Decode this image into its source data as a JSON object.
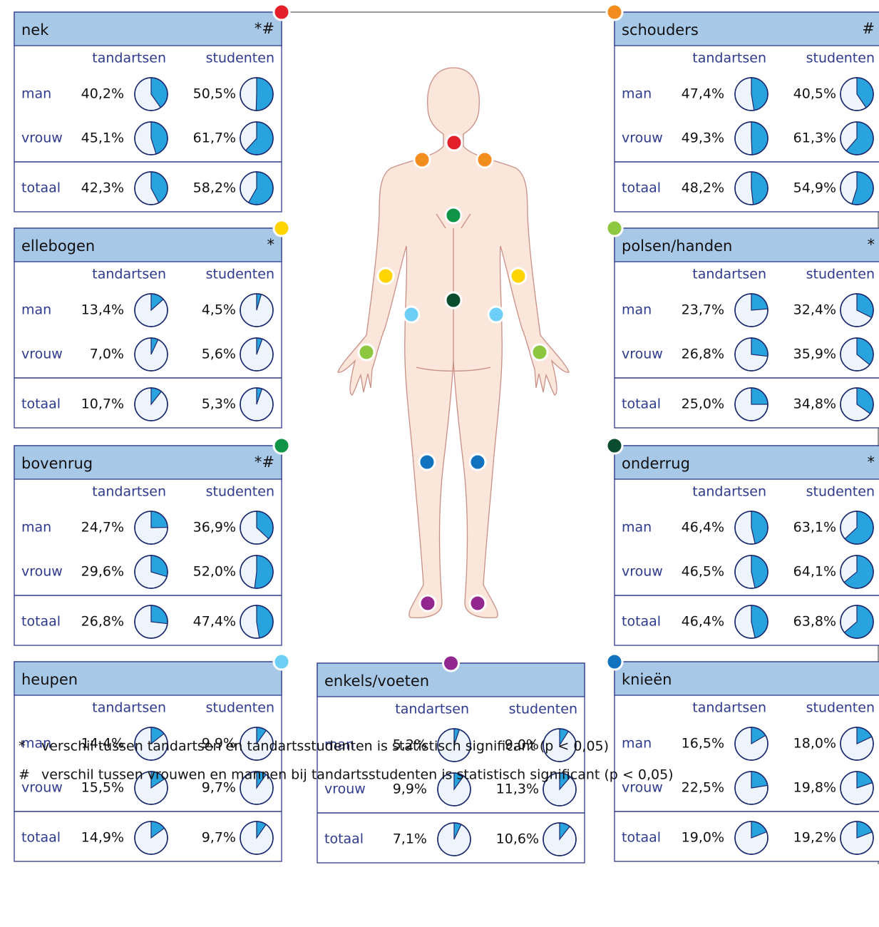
{
  "columns": [
    "tandartsen",
    "studenten"
  ],
  "rows": [
    "man",
    "vrouw",
    "totaal"
  ],
  "panels": [
    {
      "title": "nek",
      "significance": "*#",
      "color": "#e3202a",
      "values": [
        [
          40.2,
          50.5
        ],
        [
          45.1,
          61.7
        ],
        [
          42.3,
          58.2
        ]
      ],
      "value_labels": [
        [
          "40,2%",
          "50,5%"
        ],
        [
          "45,1%",
          "61,7%"
        ],
        [
          "42,3%",
          "58,2%"
        ]
      ]
    },
    {
      "title": "schouders",
      "significance": "#",
      "color": "#f28c1e",
      "values": [
        [
          47.4,
          40.5
        ],
        [
          49.3,
          61.3
        ],
        [
          48.2,
          54.9
        ]
      ],
      "value_labels": [
        [
          "47,4%",
          "40,5%"
        ],
        [
          "49,3%",
          "61,3%"
        ],
        [
          "48,2%",
          "54,9%"
        ]
      ]
    },
    {
      "title": "ellebogen",
      "significance": "*",
      "color": "#ffd400",
      "values": [
        [
          13.4,
          4.5
        ],
        [
          7.0,
          5.6
        ],
        [
          10.7,
          5.3
        ]
      ],
      "value_labels": [
        [
          "13,4%",
          "4,5%"
        ],
        [
          "7,0%",
          "5,6%"
        ],
        [
          "10,7%",
          "5,3%"
        ]
      ]
    },
    {
      "title": "polsen/handen",
      "significance": "*",
      "color": "#8dc63f",
      "values": [
        [
          23.7,
          32.4
        ],
        [
          26.8,
          35.9
        ],
        [
          25.0,
          34.8
        ]
      ],
      "value_labels": [
        [
          "23,7%",
          "32,4%"
        ],
        [
          "26,8%",
          "35,9%"
        ],
        [
          "25,0%",
          "34,8%"
        ]
      ]
    },
    {
      "title": "bovenrug",
      "significance": "*#",
      "color": "#0f9447",
      "values": [
        [
          24.7,
          36.9
        ],
        [
          29.6,
          52.0
        ],
        [
          26.8,
          47.4
        ]
      ],
      "value_labels": [
        [
          "24,7%",
          "36,9%"
        ],
        [
          "29,6%",
          "52,0%"
        ],
        [
          "26,8%",
          "47,4%"
        ]
      ]
    },
    {
      "title": "onderrug",
      "significance": "*",
      "color": "#0a4d2e",
      "values": [
        [
          46.4,
          63.1
        ],
        [
          46.5,
          64.1
        ],
        [
          46.4,
          63.8
        ]
      ],
      "value_labels": [
        [
          "46,4%",
          "63,1%"
        ],
        [
          "46,5%",
          "64,1%"
        ],
        [
          "46,4%",
          "63,8%"
        ]
      ]
    },
    {
      "title": "heupen",
      "color": "#6dcff6",
      "values": [
        [
          14.4,
          9.9
        ],
        [
          15.5,
          9.7
        ],
        [
          14.9,
          9.7
        ]
      ],
      "value_labels": [
        [
          "14,4%",
          "9,9%"
        ],
        [
          "15,5%",
          "9,7%"
        ],
        [
          "14,9%",
          "9,7%"
        ]
      ]
    },
    {
      "title": "enkels/voeten",
      "color": "#92278f",
      "values": [
        [
          5.2,
          9.0
        ],
        [
          9.9,
          11.3
        ],
        [
          7.1,
          10.6
        ]
      ],
      "value_labels": [
        [
          "5,2%",
          "9,0%"
        ],
        [
          "9,9%",
          "11,3%"
        ],
        [
          "7,1%",
          "10,6%"
        ]
      ]
    },
    {
      "title": "knieën",
      "color": "#1173bd",
      "values": [
        [
          16.5,
          18.0
        ],
        [
          22.5,
          19.8
        ],
        [
          19.0,
          19.2
        ]
      ],
      "value_labels": [
        [
          "16,5%",
          "18,0%"
        ],
        [
          "22,5%",
          "19,8%"
        ],
        [
          "19,0%",
          "19,2%"
        ]
      ]
    }
  ],
  "footnotes": [
    {
      "symbol": "*",
      "text": "verschil tussen tandartsen en tandartsstudenten is statistisch significant (p < 0,05)"
    },
    {
      "symbol": "#",
      "text": "verschil tussen vrouwen en mannen bij tandartsstudenten is statistisch significant (p < 0,05)"
    }
  ]
}
